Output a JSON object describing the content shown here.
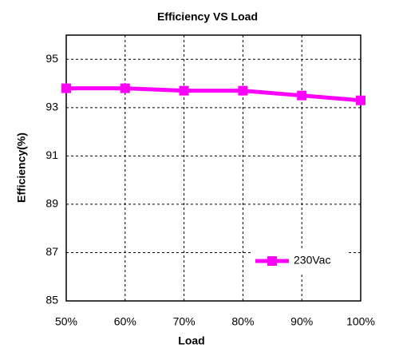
{
  "chart_data": {
    "type": "line",
    "title": "Efficiency VS  Load",
    "x_label": "Load",
    "y_label": "Efficiency(%)",
    "categories": [
      "50%",
      "60%",
      "70%",
      "80%",
      "90%",
      "100%"
    ],
    "series": [
      {
        "name": "230Vac",
        "color": "#ff00ff",
        "values": [
          93.8,
          93.8,
          93.7,
          93.7,
          93.5,
          93.3
        ]
      }
    ],
    "ylim": [
      85,
      96
    ],
    "yticks": [
      85,
      87,
      89,
      91,
      93,
      95
    ],
    "grid": true,
    "legend": "lower right"
  }
}
